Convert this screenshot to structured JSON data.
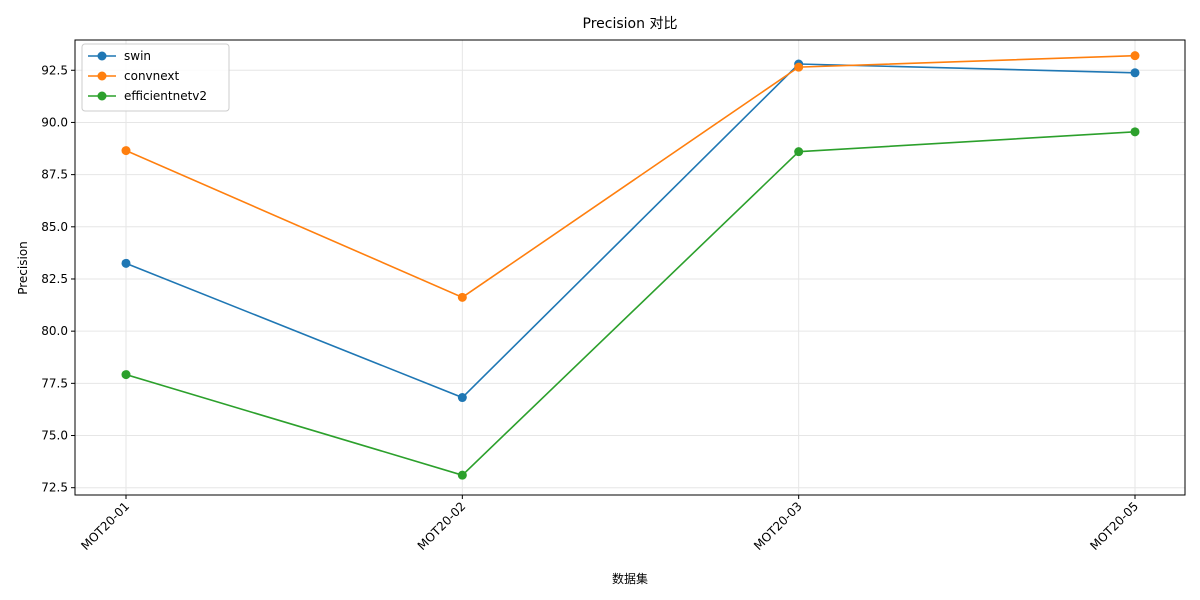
{
  "chart_data": {
    "type": "line",
    "title": "Precision 对比",
    "xlabel": "数据集",
    "ylabel": "Precision",
    "categories": [
      "MOT20-01",
      "MOT20-02",
      "MOT20-03",
      "MOT20-05"
    ],
    "ylim": [
      72.15,
      93.95
    ],
    "yticks": [
      72.5,
      75.0,
      77.5,
      80.0,
      82.5,
      85.0,
      87.5,
      90.0,
      92.5
    ],
    "ytick_labels": [
      "72.5",
      "75.0",
      "77.5",
      "80.0",
      "82.5",
      "85.0",
      "87.5",
      "90.0",
      "92.5"
    ],
    "grid": true,
    "legend_position": "top-left",
    "xtick_rotation": 45,
    "series": [
      {
        "name": "swin",
        "color": "#1f77b4",
        "values": [
          83.25,
          76.82,
          92.8,
          92.38
        ]
      },
      {
        "name": "convnext",
        "color": "#ff7f0e",
        "values": [
          88.65,
          81.62,
          92.65,
          93.2
        ]
      },
      {
        "name": "efficientnetv2",
        "color": "#2ca02c",
        "values": [
          77.92,
          73.1,
          88.6,
          89.55
        ]
      }
    ]
  }
}
